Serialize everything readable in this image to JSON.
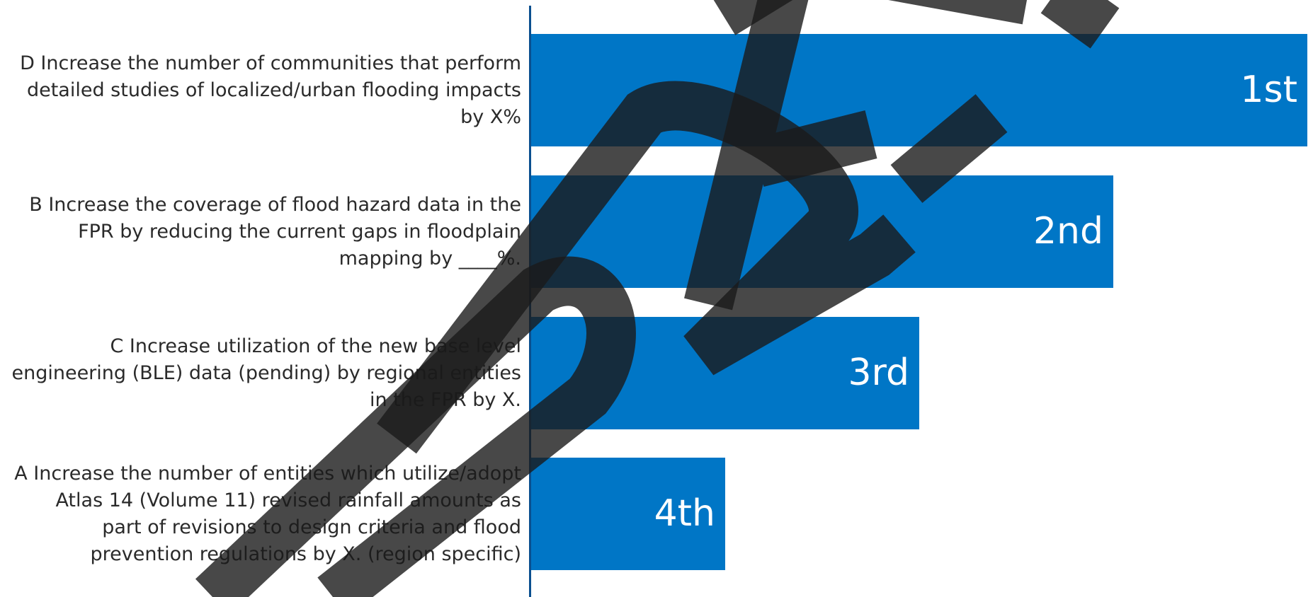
{
  "chart_data": {
    "type": "bar",
    "orientation": "horizontal",
    "categories": [
      "D Increase the number of communities that perform detailed studies of localized/urban flooding impacts by X%",
      "B Increase the coverage of flood hazard data in the FPR by reducing the current gaps in floodplain mapping by ____%.",
      "C Increase utilization of the new base level engineering (BLE) data (pending) by regional entities in the FPR by X.",
      "A Increase the number of entities which utilize/adopt Atlas 14 (Volume 11) revised rainfall amounts as part of revisions to design criteria and flood prevention regulations by X. (region specific)"
    ],
    "category_lines": [
      [
        "D Increase the number of communities that perform",
        "detailed studies of localized/urban flooding impacts",
        "by X%"
      ],
      [
        "B Increase the coverage of flood hazard data in the",
        "FPR by reducing the current gaps in floodplain",
        "mapping by ____%."
      ],
      [
        "C Increase utilization of the new base level",
        "engineering (BLE) data (pending) by regional entities",
        "in the FPR by X."
      ],
      [
        "A Increase the number of entities which utilize/adopt",
        "Atlas 14 (Volume 11) revised rainfall amounts as",
        "part of revisions to design criteria and flood",
        "prevention regulations by X. (region specific)"
      ]
    ],
    "values": [
      4.0,
      3.0,
      2.0,
      1.0
    ],
    "data_labels": [
      "1st",
      "2nd",
      "3rd",
      "4th"
    ],
    "xlim": [
      0,
      4.0
    ],
    "title": "",
    "xlabel": "",
    "ylabel": "",
    "grid": false,
    "bar_color": "#0076c6",
    "axis_color": "#0a4f8f"
  },
  "watermark": {
    "text": "DRAFT",
    "color": "#1a1a1a",
    "opacity": 0.8
  }
}
